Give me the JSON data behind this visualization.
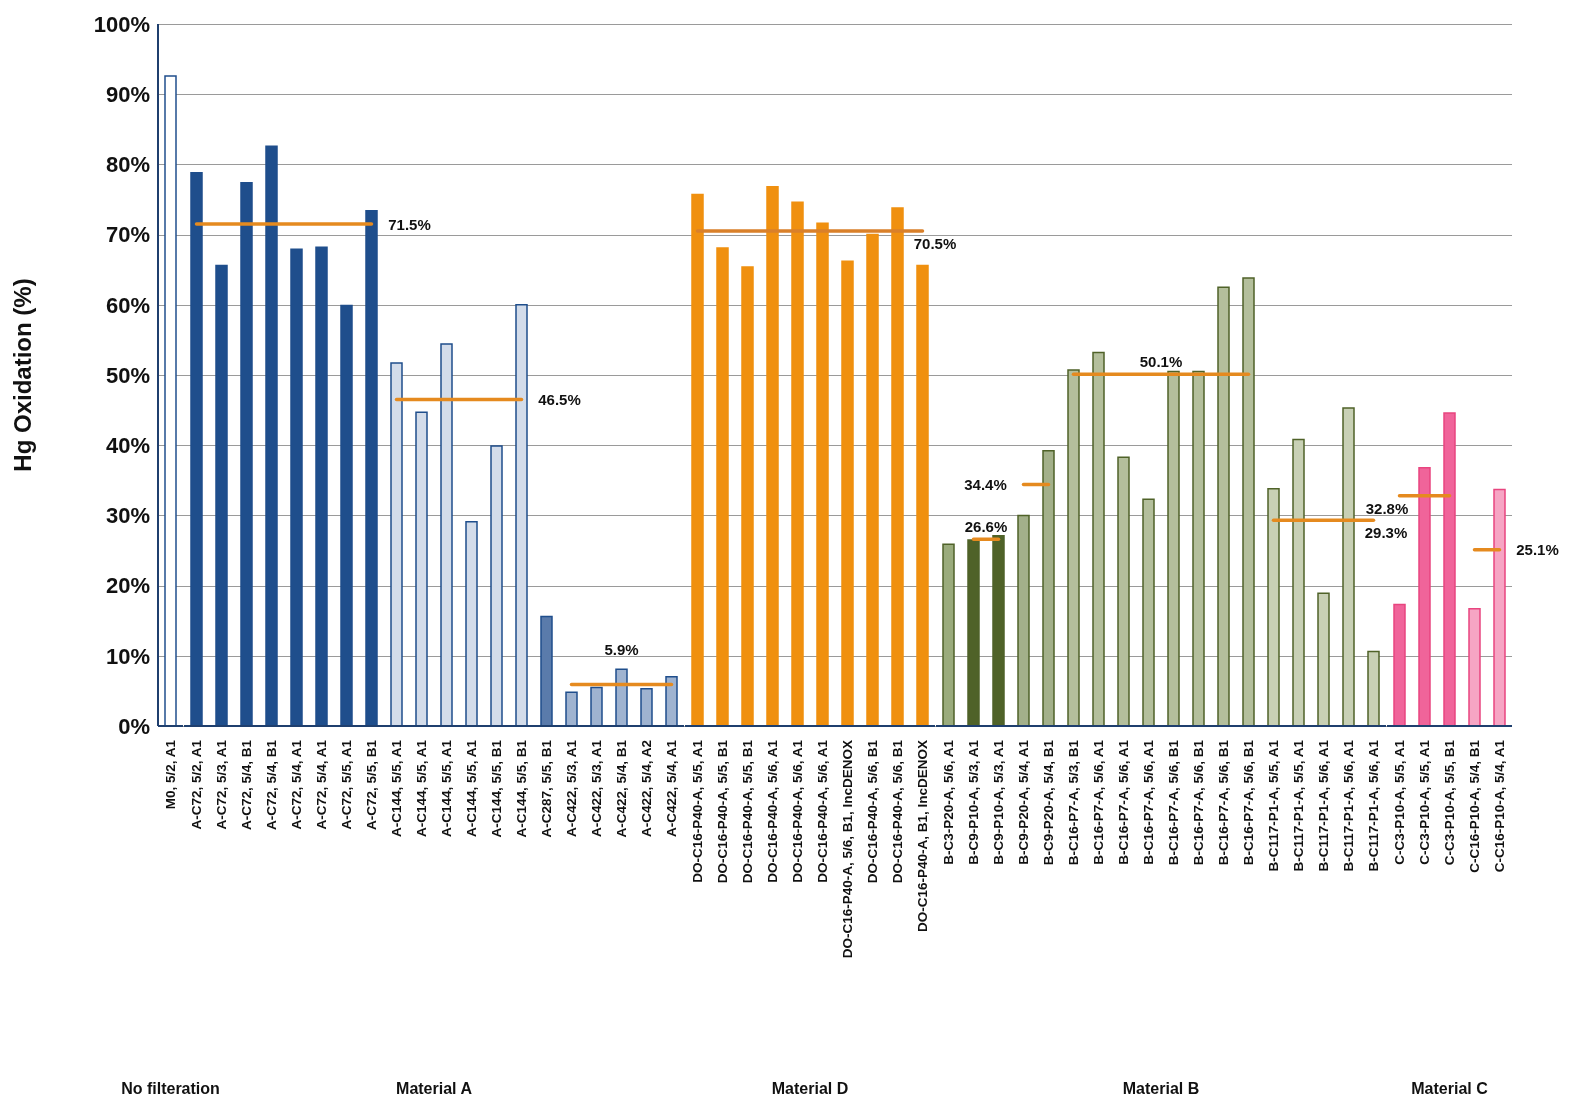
{
  "chart_data": [
    {
      "type": "bar",
      "ylabel": "Hg Oxidation (%)",
      "xlabel": "No filteration",
      "categories": [
        "M0, 5/2, A1"
      ],
      "ylim": [
        0,
        100
      ],
      "yticks": [
        {
          "value": 0,
          "label": "0%"
        },
        {
          "value": 10,
          "label": "10%"
        },
        {
          "value": 20,
          "label": "20%"
        },
        {
          "value": 30,
          "label": "30%"
        },
        {
          "value": 40,
          "label": "40%"
        },
        {
          "value": 50,
          "label": "50%"
        },
        {
          "value": 60,
          "label": "60%"
        },
        {
          "value": 70,
          "label": "70%"
        },
        {
          "value": 80,
          "label": "80%"
        },
        {
          "value": 90,
          "label": "90%"
        },
        {
          "value": 100,
          "label": "100%"
        }
      ],
      "grid": "y",
      "legend": false,
      "series": [
        {
          "color": "#1f4e8c",
          "colors": [
            "#ffffff"
          ],
          "values": [
            92.6
          ]
        }
      ]
    },
    {
      "type": "bar",
      "xlabel": "Material A",
      "categories": [
        "A-C72, 5/2, A1",
        "A-C72, 5/3, A1",
        "A-C72, 5/4, B1",
        "A-C72, 5/4, B1",
        "A-C72, 5/4, A1",
        "A-C72, 5/4, A1",
        "A-C72, 5/5, A1",
        "A-C72, 5/5, B1",
        "A-C144, 5/5, A1",
        "A-C144, 5/5, A1",
        "A-C144, 5/5, A1",
        "A-C144, 5/5, A1",
        "A-C144, 5/5, B1",
        "A-C144, 5/5, B1",
        "A-C287, 5/5, B1",
        "A-C422, 5/3, A1",
        "A-C422, 5/3, A1",
        "A-C422, 5/4, B1",
        "A-C422, 5/4, A2",
        "A-C422, 5/4, A1"
      ],
      "ylim": [
        0,
        100
      ],
      "yticks": [
        0,
        10,
        20,
        30,
        40,
        50,
        60,
        70,
        80,
        90,
        100
      ],
      "tick_labels": "x",
      "grid": "y",
      "legend": false,
      "series": [
        {
          "color": "#1f4e8c",
          "colors": [
            "#1f4e8c",
            "#1f4e8c",
            "#1f4e8c",
            "#1f4e8c",
            "#1f4e8c",
            "#1f4e8c",
            "#1f4e8c",
            "#1f4e8c",
            "#d3dcea",
            "#d3dcea",
            "#d3dcea",
            "#d3dcea",
            "#d3dcea",
            "#d3dcea",
            "#5a7bab",
            "#9fb3d0",
            "#9fb3d0",
            "#9fb3d0",
            "#9fb3d0",
            "#9fb3d0"
          ],
          "values": [
            78.8,
            65.6,
            77.4,
            82.6,
            67.9,
            68.2,
            59.9,
            73.4,
            51.7,
            44.7,
            54.4,
            29.1,
            39.9,
            60.0,
            15.6,
            4.8,
            5.5,
            8.1,
            5.3,
            7.0
          ]
        },
        {
          "type": "line",
          "name": "71.5%",
          "color": "#e58a1f",
          "values": [
            71.5,
            71.5,
            71.5,
            71.5,
            71.5,
            71.5,
            71.5,
            71.5,
            null,
            null,
            null,
            null,
            null,
            null,
            null,
            null,
            null,
            null,
            null,
            null
          ]
        },
        {
          "type": "line",
          "name": "46.5%",
          "color": "#e58a1f",
          "values": [
            null,
            null,
            null,
            null,
            null,
            null,
            null,
            null,
            46.5,
            46.5,
            46.5,
            46.5,
            46.5,
            46.5,
            null,
            null,
            null,
            null,
            null,
            null
          ]
        },
        {
          "type": "line",
          "name": "5.9%",
          "color": "#e58a1f",
          "values": [
            null,
            null,
            null,
            null,
            null,
            null,
            null,
            null,
            null,
            null,
            null,
            null,
            null,
            null,
            null,
            5.9,
            5.9,
            5.9,
            5.9,
            5.9
          ]
        }
      ]
    },
    {
      "type": "bar",
      "xlabel": "Material D",
      "categories": [
        "DO-C16-P40-A, 5/5, A1",
        "DO-C16-P40-A, 5/5, B1",
        "DO-C16-P40-A, 5/5, B1",
        "DO-C16-P40-A, 5/6, A1",
        "DO-C16-P40-A, 5/6, A1",
        "DO-C16-P40-A, 5/6, A1",
        "DO-C16-P40-A, 5/6, B1, IncDENOX",
        "DO-C16-P40-A, 5/6, B1",
        "DO-C16-P40-A, 5/6, B1",
        "DO-C16-P40-A, B1, IncDENOX"
      ],
      "ylim": [
        0,
        100
      ],
      "yticks": [
        0,
        10,
        20,
        30,
        40,
        50,
        60,
        70,
        80,
        90,
        100
      ],
      "tick_labels": "x",
      "grid": "y",
      "legend": false,
      "series": [
        {
          "color": "#f0900f",
          "colors": [
            "#f0900f",
            "#f0900f",
            "#f0900f",
            "#f0900f",
            "#f0900f",
            "#f0900f",
            "#f0900f",
            "#f0900f",
            "#f0900f",
            "#f0900f"
          ],
          "values": [
            75.7,
            68.1,
            65.4,
            76.8,
            74.6,
            71.6,
            66.2,
            70.0,
            73.8,
            65.6
          ]
        },
        {
          "type": "line",
          "name": "70.5%",
          "color": "#d9802a",
          "values": [
            70.5,
            70.5,
            70.5,
            70.5,
            70.5,
            70.5,
            70.5,
            70.5,
            70.5,
            70.5
          ]
        }
      ]
    },
    {
      "type": "bar",
      "xlabel": "Material B",
      "categories": [
        "B-C3-P20-A, 5/6, A1",
        "B-C9-P10-A, 5/3, A1",
        "B-C9-P10-A, 5/3, A1",
        "B-C9-P20-A, 5/4, A1",
        "B-C9-P20-A, 5/4, B1",
        "B-C16-P7-A, 5/3, B1",
        "B-C16-P7-A, 5/6, A1",
        "B-C16-P7-A, 5/6, A1",
        "B-C16-P7-A, 5/6, A1",
        "B-C16-P7-A, 5/6, B1",
        "B-C16-P7-A, 5/6, B1",
        "B-C16-P7-A, 5/6, B1",
        "B-C16-P7-A, 5/6, B1",
        "B-C117-P1-A, 5/5, A1",
        "B-C117-P1-A, 5/5, A1",
        "B-C117-P1-A, 5/6, A1",
        "B-C117-P1-A, 5/6, A1",
        "B-C117-P1-A, 5/6, A1"
      ],
      "ylim": [
        0,
        100
      ],
      "yticks": [
        0,
        10,
        20,
        30,
        40,
        50,
        60,
        70,
        80,
        90,
        100
      ],
      "tick_labels": "x",
      "grid": "y",
      "legend": false,
      "series": [
        {
          "color": "#4f6228",
          "colors": [
            "#9aab7c",
            "#4f6228",
            "#4f6228",
            "#a3b08a",
            "#a3b08a",
            "#b4bf9c",
            "#b4bf9c",
            "#b4bf9c",
            "#b4bf9c",
            "#b4bf9c",
            "#b4bf9c",
            "#b4bf9c",
            "#b4bf9c",
            "#c8d0b5",
            "#c8d0b5",
            "#c8d0b5",
            "#c8d0b5",
            "#c8d0b5"
          ],
          "values": [
            25.9,
            26.5,
            27.1,
            30.0,
            39.2,
            50.7,
            53.2,
            38.3,
            32.3,
            50.5,
            50.5,
            62.5,
            63.8,
            33.8,
            40.8,
            18.9,
            45.3,
            10.6
          ]
        },
        {
          "type": "line",
          "name": "26.6%",
          "color": "#e58a1f",
          "values": [
            null,
            26.6,
            26.6,
            null,
            null,
            null,
            null,
            null,
            null,
            null,
            null,
            null,
            null,
            null,
            null,
            null,
            null,
            null
          ]
        },
        {
          "type": "line",
          "name": "34.4%",
          "color": "#e58a1f",
          "values": [
            null,
            null,
            null,
            34.4,
            34.4,
            null,
            null,
            null,
            null,
            null,
            null,
            null,
            null,
            null,
            null,
            null,
            null,
            null
          ]
        },
        {
          "type": "line",
          "name": "50.1%",
          "color": "#e58a1f",
          "values": [
            null,
            null,
            null,
            null,
            null,
            50.1,
            50.1,
            50.1,
            50.1,
            50.1,
            50.1,
            50.1,
            50.1,
            null,
            null,
            null,
            null,
            null
          ]
        },
        {
          "type": "line",
          "name": "29.3%",
          "color": "#e58a1f",
          "values": [
            null,
            null,
            null,
            null,
            null,
            null,
            null,
            null,
            null,
            null,
            null,
            null,
            null,
            29.3,
            29.3,
            29.3,
            29.3,
            29.3
          ]
        }
      ]
    },
    {
      "type": "bar",
      "xlabel": "Material C",
      "categories": [
        "C-C3-P10-A, 5/5, A1",
        "C-C3-P10-A, 5/5, A1",
        "C-C3-P10-A, 5/5, B1",
        "C-C16-P10-A, 5/4, B1",
        "C-C16-P10-A, 5/4, A1"
      ],
      "ylim": [
        0,
        100
      ],
      "yticks": [
        0,
        10,
        20,
        30,
        40,
        50,
        60,
        70,
        80,
        90,
        100
      ],
      "tick_labels": "x",
      "grid": "y",
      "legend": false,
      "series": [
        {
          "color": "#e8457f",
          "colors": [
            "#f0649a",
            "#f0649a",
            "#f0649a",
            "#f6a5c4",
            "#f6a5c4"
          ],
          "values": [
            17.3,
            36.8,
            44.6,
            16.7,
            33.7
          ]
        },
        {
          "type": "line",
          "name": "32.8%",
          "color": "#e58a1f",
          "values": [
            32.8,
            32.8,
            32.8,
            null,
            null
          ]
        },
        {
          "type": "line",
          "name": "25.1%",
          "color": "#e58a1f",
          "values": [
            null,
            null,
            null,
            25.1,
            25.1
          ]
        }
      ]
    }
  ]
}
